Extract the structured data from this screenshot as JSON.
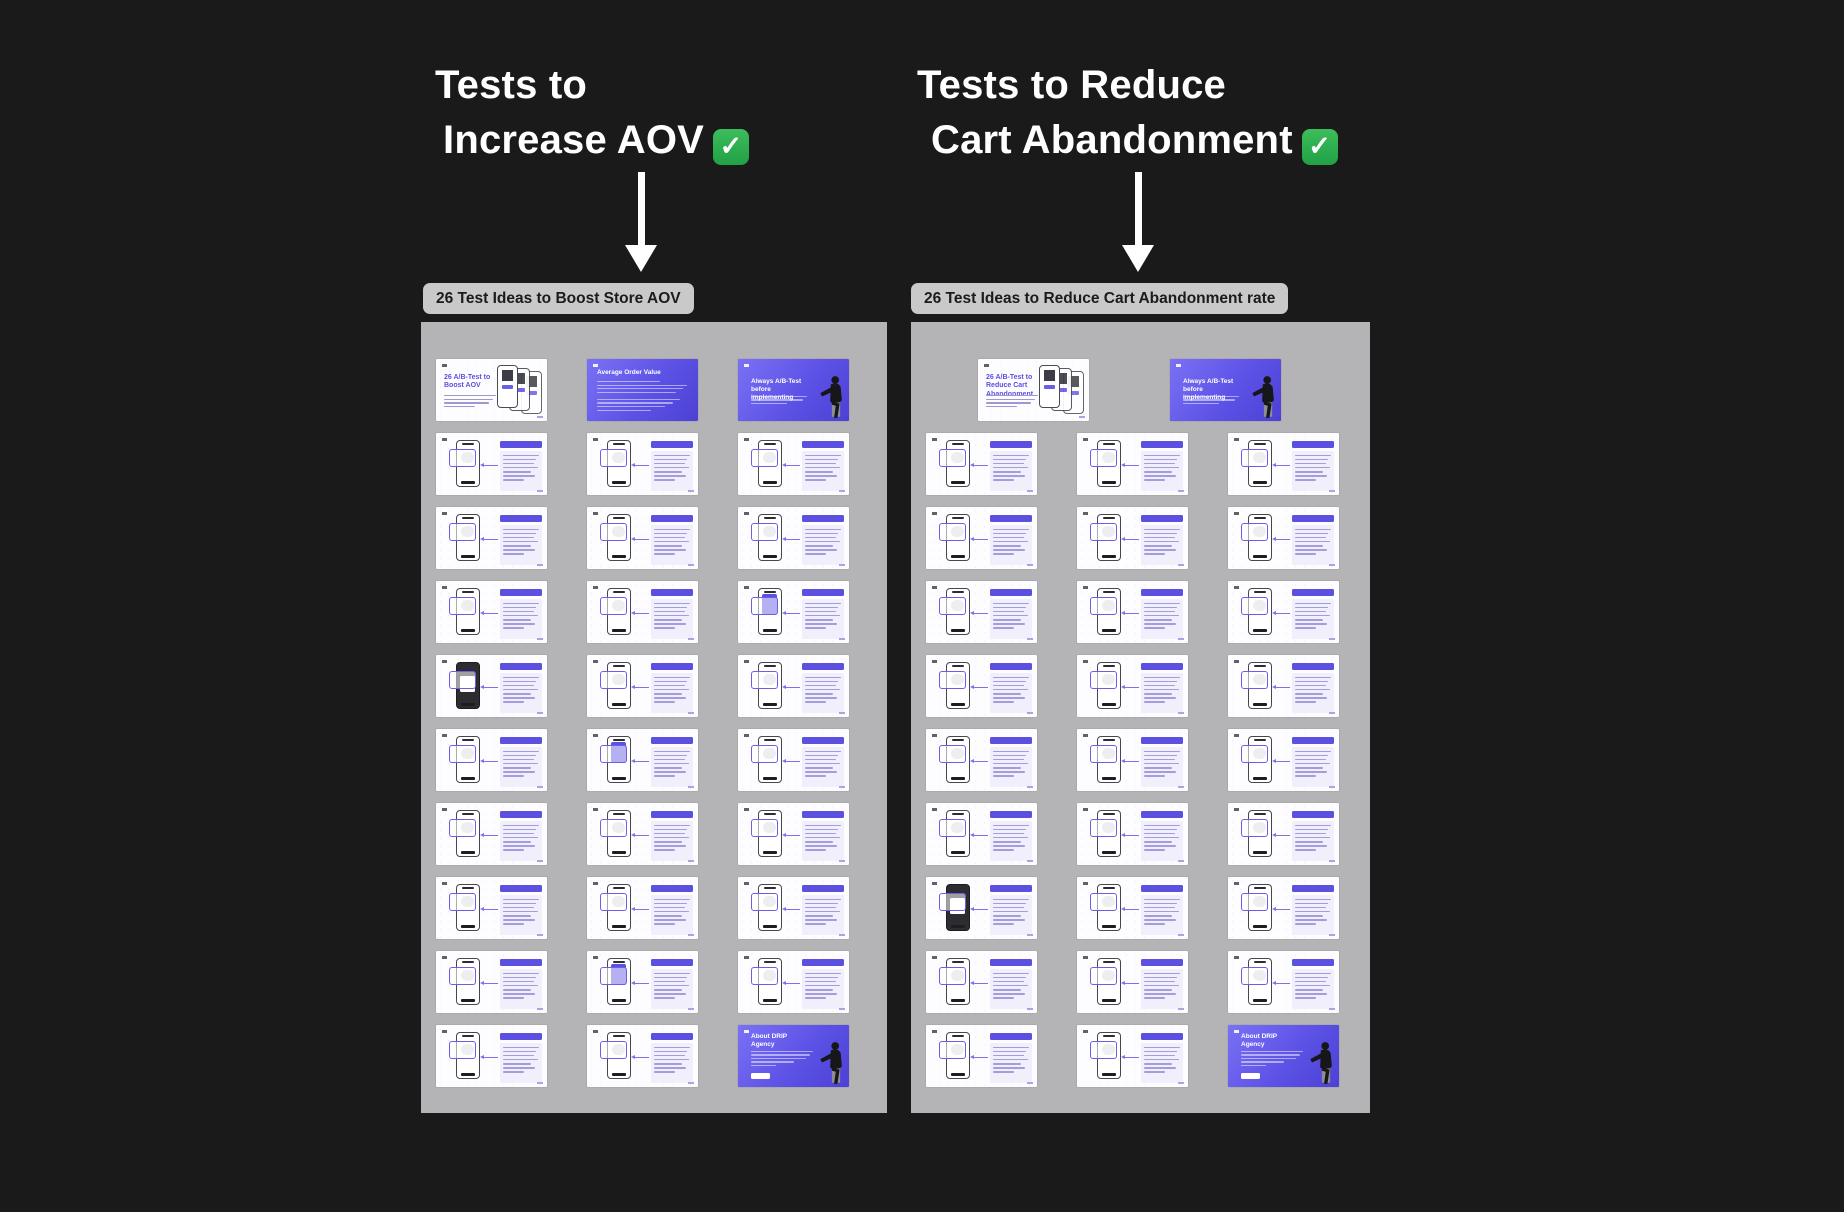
{
  "colors": {
    "background": "#1a1a1b",
    "board_bg": "#b4b4b6",
    "label_bg": "#c9c9ca",
    "accent_purple": "#5b50e0",
    "panel_body": "#f0effb",
    "check_green": "#2fa94f",
    "heading_text": "#ffffff"
  },
  "headings": {
    "left": {
      "line1": "Tests to",
      "line2": "Increase AOV",
      "check_icon": "✅"
    },
    "right": {
      "line1": "Tests to Reduce",
      "line2": "Cart Abandonment",
      "check_icon": "✅"
    }
  },
  "boards": {
    "left": {
      "label": "26 Test Ideas to Boost Store AOV",
      "slides": [
        {
          "type": "cover-light",
          "title": "26 A/B-Test to Boost AOV"
        },
        {
          "type": "cover-purple",
          "title": "Average Order Value"
        },
        {
          "type": "cover-person",
          "title": "Always A/B-Test before implementing"
        },
        {
          "type": "content",
          "phone": "white"
        },
        {
          "type": "content",
          "phone": "white"
        },
        {
          "type": "content",
          "phone": "white"
        },
        {
          "type": "content",
          "phone": "white"
        },
        {
          "type": "content",
          "phone": "white"
        },
        {
          "type": "content",
          "phone": "white"
        },
        {
          "type": "content",
          "phone": "white"
        },
        {
          "type": "content",
          "phone": "white"
        },
        {
          "type": "content",
          "phone": "purple"
        },
        {
          "type": "content",
          "phone": "black"
        },
        {
          "type": "content",
          "phone": "white"
        },
        {
          "type": "content",
          "phone": "white"
        },
        {
          "type": "content",
          "phone": "white"
        },
        {
          "type": "content",
          "phone": "purple"
        },
        {
          "type": "content",
          "phone": "white"
        },
        {
          "type": "content",
          "phone": "white"
        },
        {
          "type": "content",
          "phone": "white"
        },
        {
          "type": "content",
          "phone": "white"
        },
        {
          "type": "content",
          "phone": "white"
        },
        {
          "type": "content",
          "phone": "white"
        },
        {
          "type": "content",
          "phone": "white"
        },
        {
          "type": "content",
          "phone": "white"
        },
        {
          "type": "content",
          "phone": "purple"
        },
        {
          "type": "content",
          "phone": "white"
        },
        {
          "type": "content",
          "phone": "white"
        },
        {
          "type": "content",
          "phone": "white"
        },
        {
          "type": "about",
          "title": "About DRIP Agency"
        }
      ]
    },
    "right": {
      "label": "26 Test Ideas to Reduce Cart Abandonment rate",
      "slides": [
        {
          "type": "cover-light",
          "title": "26 A/B-Test to Reduce Cart Abandonment"
        },
        {
          "type": "cover-person",
          "title": "Always A/B-Test before implementing"
        },
        {
          "type": "content",
          "phone": "white"
        },
        {
          "type": "content",
          "phone": "white"
        },
        {
          "type": "content",
          "phone": "white"
        },
        {
          "type": "content",
          "phone": "white"
        },
        {
          "type": "content",
          "phone": "white"
        },
        {
          "type": "content",
          "phone": "white"
        },
        {
          "type": "content",
          "phone": "white"
        },
        {
          "type": "content",
          "phone": "white"
        },
        {
          "type": "content",
          "phone": "white"
        },
        {
          "type": "content",
          "phone": "white"
        },
        {
          "type": "content",
          "phone": "white"
        },
        {
          "type": "content",
          "phone": "white"
        },
        {
          "type": "content",
          "phone": "white"
        },
        {
          "type": "content",
          "phone": "white"
        },
        {
          "type": "content",
          "phone": "white"
        },
        {
          "type": "content",
          "phone": "white"
        },
        {
          "type": "content",
          "phone": "white"
        },
        {
          "type": "content",
          "phone": "white"
        },
        {
          "type": "content",
          "phone": "black"
        },
        {
          "type": "content",
          "phone": "white"
        },
        {
          "type": "content",
          "phone": "white"
        },
        {
          "type": "content",
          "phone": "white"
        },
        {
          "type": "content",
          "phone": "white"
        },
        {
          "type": "content",
          "phone": "white"
        },
        {
          "type": "content",
          "phone": "white"
        },
        {
          "type": "content",
          "phone": "white"
        },
        {
          "type": "about",
          "title": "About DRIP Agency"
        }
      ]
    }
  }
}
